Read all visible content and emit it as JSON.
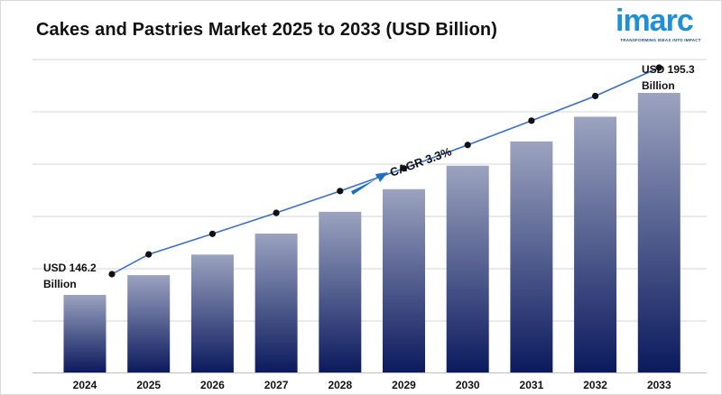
{
  "title": "Cakes and Pastries Market 2025 to 2033 (USD Billion)",
  "logo": {
    "word": "imarc",
    "tagline": "TRANSFORMING IDEAS INTO IMPACT",
    "color": "#1f8fd6"
  },
  "annotations": {
    "start_line1": "USD 146.2",
    "start_line2": "Billion",
    "end_line1": "USD 195.3",
    "end_line2": "Billion",
    "cagr": "CAGR 3.3%"
  },
  "colors": {
    "bar_top": "#9ba3bf",
    "bar_bottom": "#0b1a5e",
    "line": "#3a6fc4",
    "marker": "#111111",
    "arrow": "#1f6fc0",
    "grid": "#d4d4d4"
  },
  "chart_data": {
    "type": "bar",
    "title": "Cakes and Pastries Market 2025 to 2033 (USD Billion)",
    "xlabel": "",
    "ylabel": "",
    "categories": [
      "2024",
      "2025",
      "2026",
      "2027",
      "2028",
      "2029",
      "2030",
      "2031",
      "2032",
      "2033"
    ],
    "series": [
      {
        "values": [
          146.2,
          151.0,
          156.0,
          161.1,
          166.4,
          171.9,
          177.6,
          183.5,
          189.5,
          195.3
        ]
      }
    ],
    "overlay_line": true,
    "grid": true,
    "legend": "none"
  }
}
